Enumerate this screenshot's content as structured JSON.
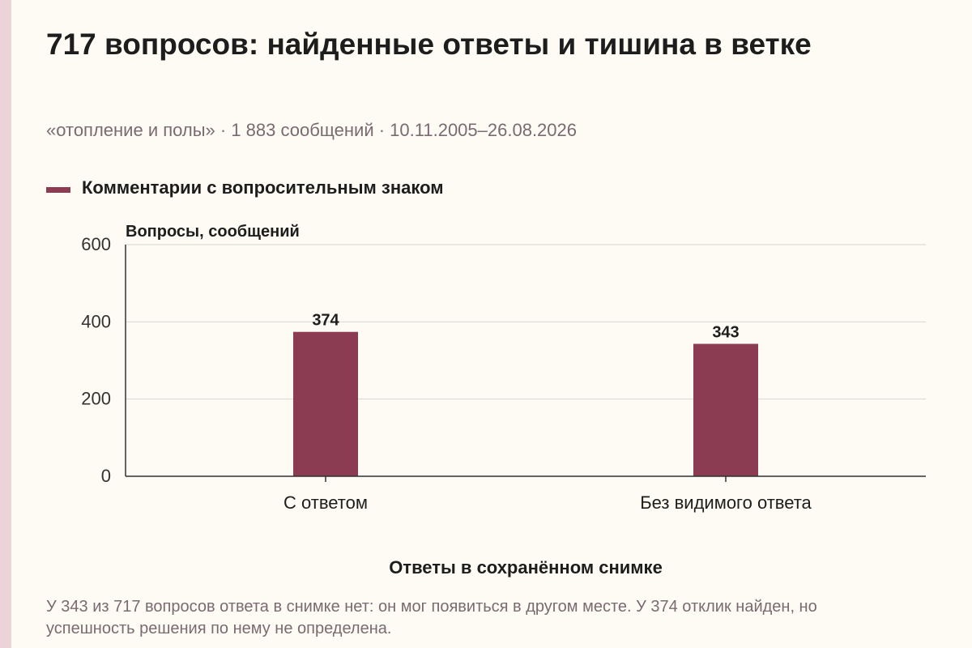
{
  "title": "717 вопросов: найденные ответы и тишина в ветке",
  "subtitle": "«отопление и полы» · 1 883 сообщений · 10.11.2005–26.08.2026",
  "footnote": "У 343 из 717 вопросов ответа в снимке нет: он мог появиться в другом месте. У 374 отклик найден, но успешность решения по нему не определена.",
  "colors": {
    "accent_strip": "#ecd3da",
    "bar": "#8b3c52",
    "grid": "#d9d6cf",
    "axis": "#333333"
  },
  "chart_data": {
    "type": "bar",
    "categories": [
      "С ответом",
      "Без видимого ответа"
    ],
    "series": [
      {
        "name": "Комментарии с вопросительным знаком",
        "values": [
          374,
          343
        ]
      }
    ],
    "xlabel": "Ответы в сохранённом снимке",
    "ylabel": "Вопросы, сообщений",
    "ylim": [
      0,
      600
    ],
    "yticks": [
      "0",
      "200",
      "400",
      "600"
    ],
    "data_labels": [
      "374",
      "343"
    ],
    "grid": true,
    "legend": "top-left"
  }
}
